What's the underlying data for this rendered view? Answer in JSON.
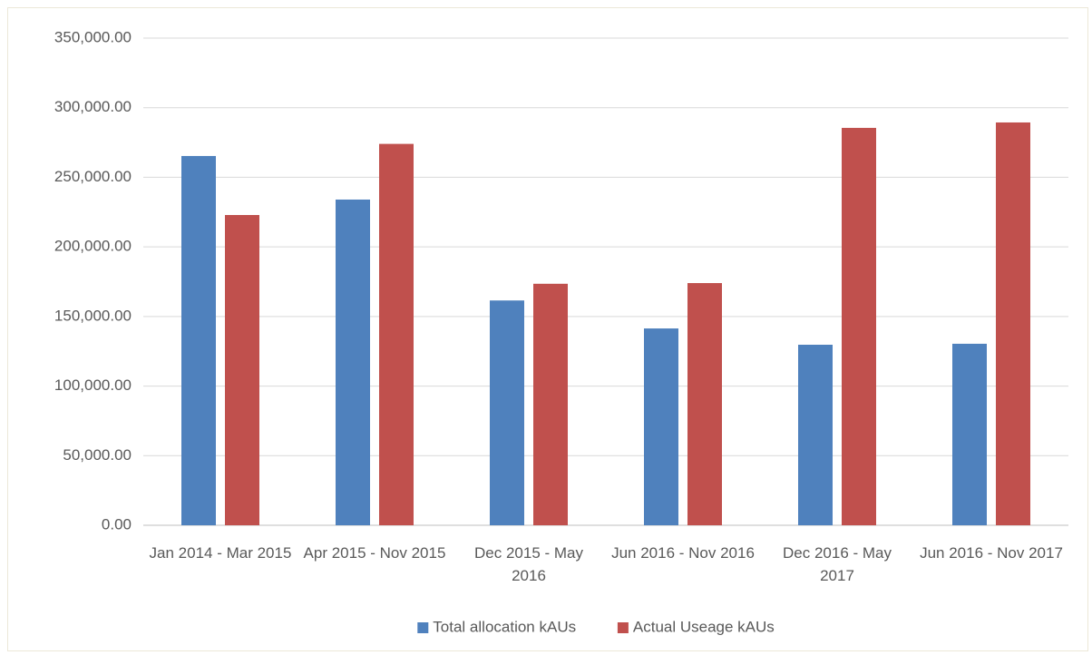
{
  "chart_data": {
    "type": "bar",
    "categories": [
      "Jan 2014 - Mar 2015",
      "Apr 2015 - Nov 2015",
      "Dec 2015 - May 2016",
      "Jun 2016 - Nov 2016",
      "Dec 2016 - May 2017",
      "Jun 2016 - Nov 2017"
    ],
    "series": [
      {
        "name": "Total allocation kAUs",
        "color": "#4f81bd",
        "values": [
          265300,
          234000,
          161500,
          141400,
          129700,
          130400
        ]
      },
      {
        "name": "Actual Useage kAUs",
        "color": "#c0504d",
        "values": [
          222900,
          274000,
          173500,
          174000,
          285500,
          289400
        ]
      }
    ],
    "ylim": [
      0,
      350000
    ],
    "yticks": [
      {
        "value": 0,
        "label": "0.00"
      },
      {
        "value": 50000,
        "label": "50,000.00"
      },
      {
        "value": 100000,
        "label": "100,000.00"
      },
      {
        "value": 150000,
        "label": "150,000.00"
      },
      {
        "value": 200000,
        "label": "200,000.00"
      },
      {
        "value": 250000,
        "label": "250,000.00"
      },
      {
        "value": 300000,
        "label": "300,000.00"
      },
      {
        "value": 350000,
        "label": "350,000.00"
      }
    ],
    "grid": true,
    "legend": "bottom"
  }
}
